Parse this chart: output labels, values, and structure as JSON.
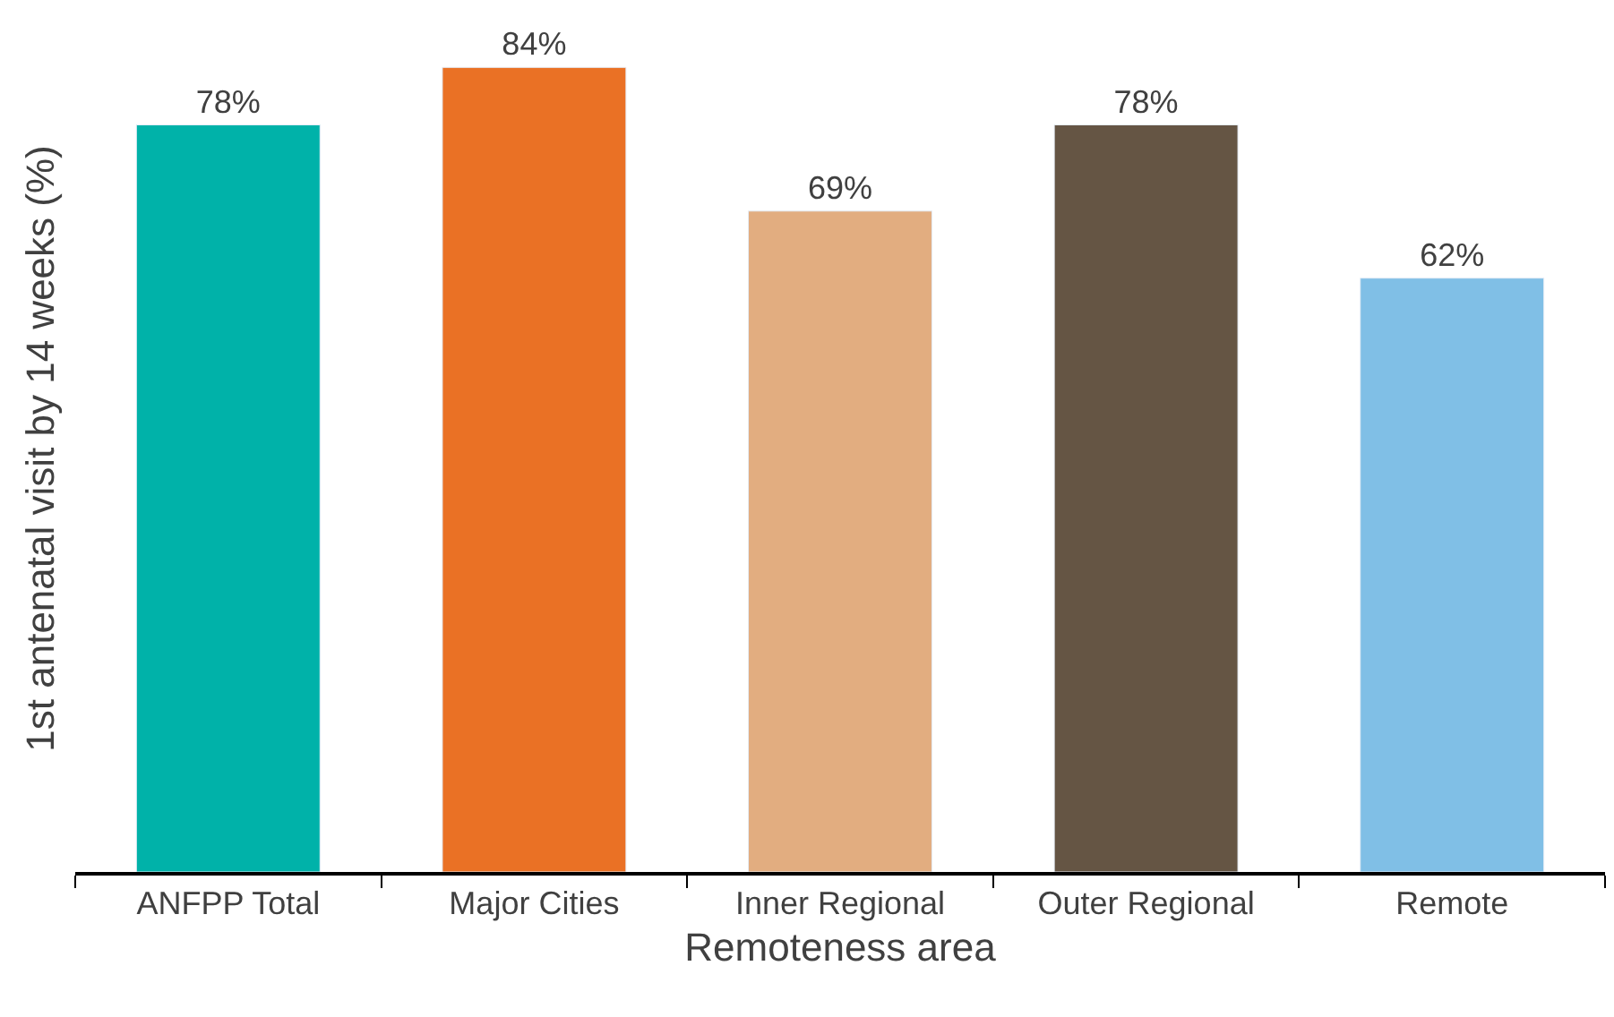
{
  "chart_data": {
    "type": "bar",
    "xlabel": "Remoteness area",
    "ylabel": "1st antenatal visit by 14 weeks (%)",
    "categories": [
      "ANFPP Total",
      "Major Cities",
      "Inner Regional",
      "Outer Regional",
      "Remote"
    ],
    "values": [
      78,
      84,
      69,
      78,
      62
    ],
    "colors": [
      "#00b2a9",
      "#ea7125",
      "#e2ad80",
      "#655544",
      "#80bfe6"
    ],
    "value_labels": [
      "78%",
      "84%",
      "69%",
      "78%",
      "62%"
    ],
    "tick_labels": "x"
  }
}
